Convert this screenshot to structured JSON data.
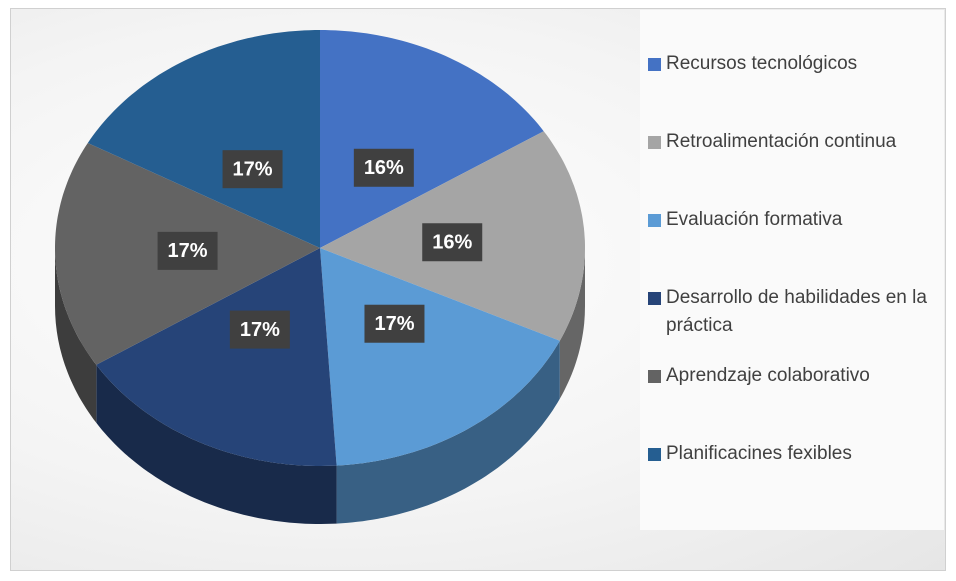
{
  "chart_data": {
    "type": "pie",
    "categories": [
      "Recursos tecnológicos",
      "Retroalimentación continua",
      "Evaluación formativa",
      "Desarrollo de habilidades en la práctica",
      "Aprendzaje colaborativo",
      "Planificacines fexibles"
    ],
    "values": [
      16,
      16,
      17,
      17,
      17,
      17
    ],
    "value_labels": [
      "16%",
      "16%",
      "17%",
      "17%",
      "17%",
      "17%"
    ],
    "colors": [
      "#4472c4",
      "#a5a5a5",
      "#5b9bd5",
      "#264478",
      "#636363",
      "#255e91"
    ],
    "legend": "right"
  }
}
